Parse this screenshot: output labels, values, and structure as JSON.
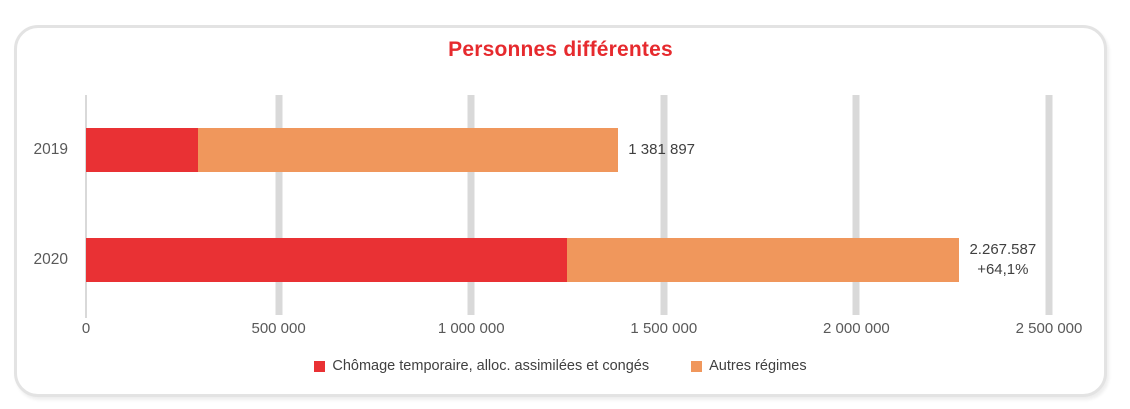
{
  "chart_data": {
    "type": "bar",
    "orientation": "horizontal",
    "stacked": true,
    "title": "Personnes différentes",
    "xlabel": "",
    "ylabel": "",
    "xlim": [
      0,
      2500000
    ],
    "grid": "vertical",
    "legend_position": "bottom",
    "categories": [
      "2019",
      "2020"
    ],
    "series": [
      {
        "name": "Chômage temporaire, alloc. assimilées et congés",
        "color": "#e93134",
        "values": [
          290000,
          1250000
        ]
      },
      {
        "name": "Autres régimes",
        "color": "#f0975c",
        "values": [
          1091897,
          1017587
        ]
      }
    ],
    "totals": [
      1381897,
      2267587
    ],
    "bar_labels": [
      [
        "1 381 897"
      ],
      [
        "2.267.587",
        "+64,1%"
      ]
    ],
    "x_ticks": {
      "values": [
        0,
        500000,
        1000000,
        1500000,
        2000000,
        2500000
      ],
      "labels": [
        "0",
        "500 000",
        "1 000 000",
        "1 500 000",
        "2 000 000",
        "2 500 000"
      ]
    },
    "colors": {
      "title": "#e62a2e",
      "gridline": "#d9d9d9",
      "axis_text": "#595959",
      "label_text": "#404040",
      "panel_border": "#e3e3e3"
    }
  }
}
